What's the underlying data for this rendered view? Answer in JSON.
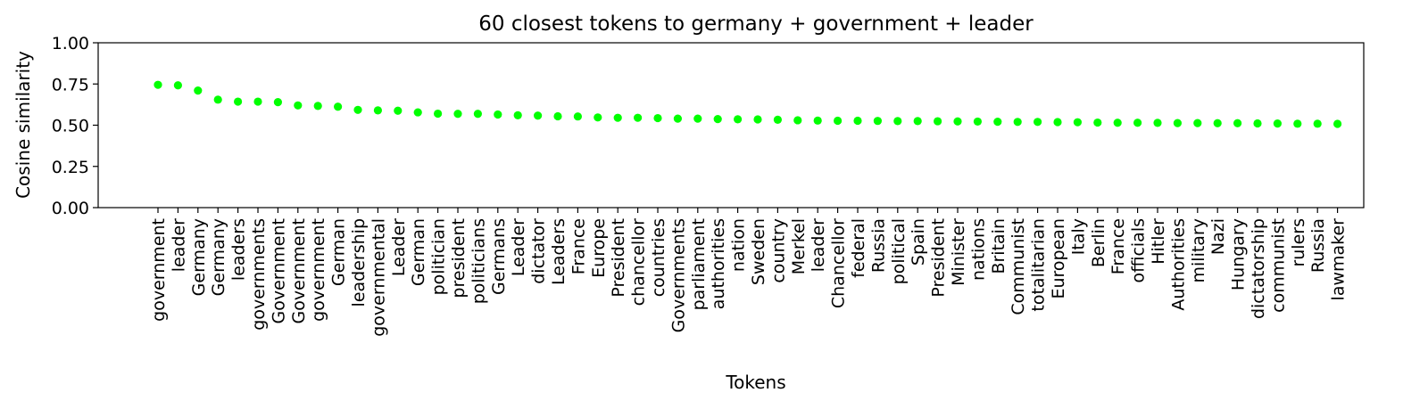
{
  "chart_data": {
    "type": "scatter",
    "title": "60 closest tokens to germany + government + leader",
    "xlabel": "Tokens",
    "ylabel": "Cosine similarity",
    "ylim": [
      0.0,
      1.0
    ],
    "yticks": [
      "0.00",
      "0.25",
      "0.50",
      "0.75",
      "1.00"
    ],
    "grid": false,
    "marker_color": "#00ff00",
    "categories": [
      "government",
      "leader",
      "Germany",
      "Germany",
      "leaders",
      "governments",
      "Government",
      "Government",
      "government",
      "German",
      "leadership",
      "governmental",
      "Leader",
      "German",
      "politician",
      "president",
      "politicians",
      "Germans",
      "Leader",
      "dictator",
      "Leaders",
      "France",
      "Europe",
      "President",
      "chancellor",
      "countries",
      "Governments",
      "parliament",
      "authorities",
      "nation",
      "Sweden",
      "country",
      "Merkel",
      "leader",
      "Chancellor",
      "federal",
      "Russia",
      "political",
      "Spain",
      "President",
      "Minister",
      "nations",
      "Britain",
      "Communist",
      "totalitarian",
      "European",
      "Italy",
      "Berlin",
      "France",
      "officials",
      "Hitler",
      "Authorities",
      "military",
      "Nazi",
      "Hungary",
      "dictatorship",
      "communist",
      "rulers",
      "Russia",
      "lawmaker"
    ],
    "values": [
      0.745,
      0.742,
      0.71,
      0.655,
      0.643,
      0.643,
      0.64,
      0.62,
      0.617,
      0.612,
      0.593,
      0.59,
      0.588,
      0.578,
      0.57,
      0.569,
      0.569,
      0.565,
      0.56,
      0.558,
      0.554,
      0.553,
      0.547,
      0.545,
      0.545,
      0.543,
      0.54,
      0.54,
      0.537,
      0.536,
      0.535,
      0.533,
      0.53,
      0.528,
      0.527,
      0.527,
      0.526,
      0.525,
      0.525,
      0.524,
      0.523,
      0.522,
      0.521,
      0.52,
      0.52,
      0.519,
      0.518,
      0.516,
      0.515,
      0.515,
      0.514,
      0.513,
      0.513,
      0.512,
      0.512,
      0.511,
      0.51,
      0.509,
      0.509,
      0.508
    ]
  }
}
